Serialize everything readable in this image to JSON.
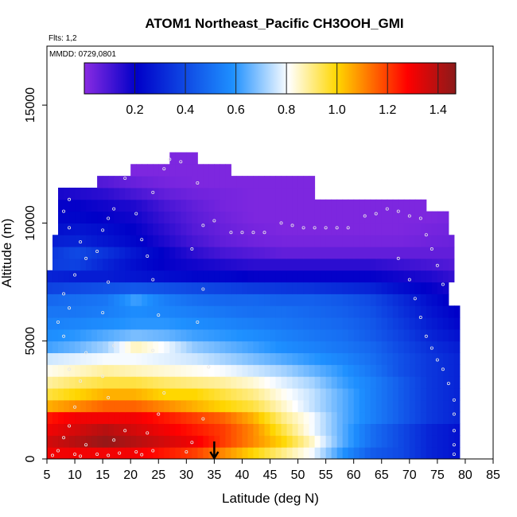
{
  "chart_data": {
    "type": "heatmap",
    "title": "ATOM1 Northeast_Pacific CH3OOH_GMI",
    "flights_label": "Flts: 1,2",
    "date_label": "MMDD: 0729,0801",
    "xlabel": "Latitude (deg N)",
    "ylabel": "Altitude (m)",
    "xlim": [
      5,
      85
    ],
    "ylim": [
      0,
      17500
    ],
    "x_ticks": [
      "5",
      "10",
      "15",
      "20",
      "25",
      "30",
      "35",
      "40",
      "45",
      "50",
      "55",
      "60",
      "65",
      "70",
      "75",
      "80",
      "85"
    ],
    "y_ticks": [
      "0",
      "5000",
      "10000",
      "15000"
    ],
    "colorbar": {
      "range": [
        0.0,
        1.47
      ],
      "ticks": [
        "0.2",
        "0.4",
        "0.6",
        "0.8",
        "1.0",
        "1.2",
        "1.4"
      ],
      "colors": [
        "#8a2be2",
        "#0000c8",
        "#1e90ff",
        "#ffffff",
        "#ffd700",
        "#ff0000",
        "#8b1a1a"
      ]
    },
    "marker_latitude": 35,
    "altitude_bands": [
      {
        "alt_bottom": 0,
        "alt_top": 500,
        "lat_min": 5,
        "lat_max": 79,
        "values": [
          1.3,
          1.3,
          1.3,
          1.3,
          1.25,
          1.2,
          1.1,
          1.0,
          0.9,
          0.8,
          0.6,
          0.45,
          0.4,
          0.3,
          0.25
        ]
      },
      {
        "alt_bottom": 500,
        "alt_top": 1000,
        "lat_min": 5,
        "lat_max": 79,
        "values": [
          1.35,
          1.4,
          1.45,
          1.4,
          1.35,
          1.3,
          1.2,
          1.1,
          1.0,
          0.85,
          0.65,
          0.5,
          0.4,
          0.3,
          0.25
        ]
      },
      {
        "alt_bottom": 1000,
        "alt_top": 1500,
        "lat_min": 5,
        "lat_max": 79,
        "values": [
          1.3,
          1.35,
          1.4,
          1.35,
          1.3,
          1.25,
          1.2,
          1.1,
          0.95,
          0.8,
          0.65,
          0.5,
          0.4,
          0.3,
          0.25
        ]
      },
      {
        "alt_bottom": 1500,
        "alt_top": 2000,
        "lat_min": 5,
        "lat_max": 79,
        "values": [
          1.25,
          1.3,
          1.3,
          1.3,
          1.25,
          1.2,
          1.15,
          1.05,
          0.9,
          0.8,
          0.65,
          0.55,
          0.45,
          0.35,
          0.3
        ]
      },
      {
        "alt_bottom": 2000,
        "alt_top": 2500,
        "lat_min": 5,
        "lat_max": 79,
        "values": [
          1.05,
          1.1,
          1.15,
          1.15,
          1.1,
          1.05,
          1.0,
          0.95,
          0.85,
          0.75,
          0.65,
          0.55,
          0.45,
          0.35,
          0.3
        ]
      },
      {
        "alt_bottom": 2500,
        "alt_top": 3000,
        "lat_min": 5,
        "lat_max": 79,
        "values": [
          0.95,
          1.0,
          1.05,
          1.05,
          1.0,
          1.0,
          0.95,
          0.9,
          0.82,
          0.75,
          0.65,
          0.55,
          0.45,
          0.35,
          0.3
        ]
      },
      {
        "alt_bottom": 3000,
        "alt_top": 3500,
        "lat_min": 5,
        "lat_max": 79,
        "values": [
          0.88,
          0.92,
          0.95,
          0.95,
          0.92,
          0.9,
          0.88,
          0.84,
          0.78,
          0.72,
          0.62,
          0.55,
          0.45,
          0.35,
          0.3
        ]
      },
      {
        "alt_bottom": 3500,
        "alt_top": 4000,
        "lat_min": 5,
        "lat_max": 79,
        "values": [
          0.82,
          0.85,
          0.88,
          0.86,
          0.84,
          0.82,
          0.8,
          0.76,
          0.72,
          0.66,
          0.6,
          0.52,
          0.42,
          0.35,
          0.3
        ]
      },
      {
        "alt_bottom": 4000,
        "alt_top": 4500,
        "lat_min": 5,
        "lat_max": 79,
        "values": [
          0.76,
          0.78,
          0.8,
          0.8,
          0.78,
          0.76,
          0.72,
          0.68,
          0.64,
          0.6,
          0.56,
          0.5,
          0.42,
          0.35,
          0.3
        ]
      },
      {
        "alt_bottom": 4500,
        "alt_top": 5000,
        "lat_min": 5,
        "lat_max": 79,
        "values": [
          0.62,
          0.66,
          0.72,
          0.86,
          0.8,
          0.7,
          0.66,
          0.62,
          0.58,
          0.55,
          0.52,
          0.48,
          0.4,
          0.33,
          0.28
        ]
      },
      {
        "alt_bottom": 5000,
        "alt_top": 5500,
        "lat_min": 5,
        "lat_max": 79,
        "values": [
          0.58,
          0.6,
          0.64,
          0.68,
          0.66,
          0.62,
          0.6,
          0.58,
          0.55,
          0.52,
          0.5,
          0.45,
          0.38,
          0.3,
          0.25
        ]
      },
      {
        "alt_bottom": 5500,
        "alt_top": 6000,
        "lat_min": 5,
        "lat_max": 79,
        "values": [
          0.55,
          0.56,
          0.58,
          0.6,
          0.6,
          0.58,
          0.56,
          0.54,
          0.52,
          0.5,
          0.48,
          0.44,
          0.36,
          0.28,
          0.22
        ]
      },
      {
        "alt_bottom": 6000,
        "alt_top": 6500,
        "lat_min": 5,
        "lat_max": 79,
        "values": [
          0.52,
          0.52,
          0.54,
          0.58,
          0.56,
          0.54,
          0.52,
          0.5,
          0.5,
          0.48,
          0.46,
          0.42,
          0.34,
          0.26,
          0.2
        ]
      },
      {
        "alt_bottom": 6500,
        "alt_top": 7000,
        "lat_min": 5,
        "lat_max": 77,
        "values": [
          0.48,
          0.5,
          0.52,
          0.62,
          0.54,
          0.5,
          0.48,
          0.48,
          0.46,
          0.46,
          0.44,
          0.4,
          0.32,
          0.24,
          0.18
        ]
      },
      {
        "alt_bottom": 7000,
        "alt_top": 7500,
        "lat_min": 5,
        "lat_max": 77,
        "values": [
          0.38,
          0.4,
          0.42,
          0.44,
          0.42,
          0.4,
          0.38,
          0.36,
          0.35,
          0.34,
          0.32,
          0.3,
          0.24,
          0.2,
          0.16
        ]
      },
      {
        "alt_bottom": 7500,
        "alt_top": 8000,
        "lat_min": 5,
        "lat_max": 78,
        "values": [
          0.3,
          0.28,
          0.28,
          0.26,
          0.24,
          0.22,
          0.22,
          0.2,
          0.2,
          0.2,
          0.2,
          0.2,
          0.18,
          0.16,
          0.12
        ]
      },
      {
        "alt_bottom": 8000,
        "alt_top": 8500,
        "lat_min": 6,
        "lat_max": 78,
        "values": [
          0.36,
          0.38,
          0.3,
          0.24,
          0.2,
          0.18,
          0.16,
          0.14,
          0.14,
          0.14,
          0.14,
          0.14,
          0.12,
          0.1,
          0.08
        ]
      },
      {
        "alt_bottom": 8500,
        "alt_top": 9000,
        "lat_min": 6,
        "lat_max": 78,
        "values": [
          0.34,
          0.4,
          0.34,
          0.26,
          0.2,
          0.14,
          0.1,
          0.08,
          0.06,
          0.06,
          0.06,
          0.06,
          0.06,
          0.06,
          0.06
        ]
      },
      {
        "alt_bottom": 9000,
        "alt_top": 9500,
        "lat_min": 6,
        "lat_max": 78,
        "values": [
          0.28,
          0.3,
          0.26,
          0.22,
          0.16,
          0.1,
          0.06,
          0.04,
          0.03,
          0.03,
          0.03,
          0.03,
          0.03,
          0.04,
          0.05
        ]
      },
      {
        "alt_bottom": 9500,
        "alt_top": 10000,
        "lat_min": 7,
        "lat_max": 77,
        "values": [
          0.24,
          0.26,
          0.24,
          0.2,
          0.14,
          0.08,
          0.05,
          0.03,
          0.02,
          0.02,
          0.02,
          0.02,
          0.02,
          0.03,
          0.04
        ]
      },
      {
        "alt_bottom": 10000,
        "alt_top": 10500,
        "lat_min": 7,
        "lat_max": 77,
        "values": [
          0.22,
          0.22,
          0.2,
          0.18,
          0.12,
          0.07,
          0.04,
          0.02,
          0.02,
          0.02,
          0.02,
          0.02,
          0.02,
          0.02,
          0.03
        ]
      },
      {
        "alt_bottom": 10500,
        "alt_top": 11000,
        "lat_min": 7,
        "lat_max": 73,
        "values": [
          0.2,
          0.2,
          0.18,
          0.16,
          0.1,
          0.06,
          0.03,
          0.02,
          0.02,
          0.02,
          0.02,
          0.02,
          0.02,
          0.02,
          0.02
        ]
      },
      {
        "alt_bottom": 11000,
        "alt_top": 11500,
        "lat_min": 7,
        "lat_max": 53,
        "values": [
          0.18,
          0.16,
          0.14,
          0.1,
          0.06,
          0.04,
          0.03,
          0.02,
          0.02,
          0.02,
          0.02,
          0.02,
          0.02,
          0.02,
          0.02
        ]
      },
      {
        "alt_bottom": 11500,
        "alt_top": 12000,
        "lat_min": 14,
        "lat_max": 53,
        "values": [
          0.12,
          0.1,
          0.08,
          0.05,
          0.03,
          0.02,
          0.02,
          0.02,
          0.02,
          0.02,
          0.02,
          0.02,
          0.02,
          0.02,
          0.02
        ]
      },
      {
        "alt_bottom": 12000,
        "alt_top": 12500,
        "lat_min": 20,
        "lat_max": 38,
        "values": [
          0.04,
          0.03,
          0.02,
          0.02,
          0.02,
          0.02,
          0.02,
          0.02,
          0.02,
          0.02,
          0.02,
          0.02,
          0.02,
          0.02,
          0.02
        ]
      },
      {
        "alt_bottom": 12500,
        "alt_top": 13000,
        "lat_min": 27,
        "lat_max": 32,
        "values": [
          0.02,
          0.02,
          0.02,
          0.02,
          0.02,
          0.02,
          0.02,
          0.02,
          0.02,
          0.02,
          0.02,
          0.02,
          0.02,
          0.02,
          0.02
        ]
      }
    ],
    "flight_points": [
      [
        6,
        150
      ],
      [
        7,
        350
      ],
      [
        8,
        900
      ],
      [
        9,
        1400
      ],
      [
        10,
        200
      ],
      [
        11,
        120
      ],
      [
        12,
        600
      ],
      [
        10,
        2200
      ],
      [
        11,
        3300
      ],
      [
        9,
        3800
      ],
      [
        12,
        4500
      ],
      [
        8,
        5200
      ],
      [
        7,
        5800
      ],
      [
        9,
        6400
      ],
      [
        8,
        7000
      ],
      [
        10,
        7800
      ],
      [
        12,
        8500
      ],
      [
        11,
        9200
      ],
      [
        9,
        9800
      ],
      [
        8,
        10500
      ],
      [
        9,
        11000
      ],
      [
        14,
        200
      ],
      [
        16,
        150
      ],
      [
        18,
        250
      ],
      [
        17,
        800
      ],
      [
        19,
        1200
      ],
      [
        16,
        2600
      ],
      [
        15,
        3500
      ],
      [
        17,
        4800
      ],
      [
        15,
        6200
      ],
      [
        16,
        7500
      ],
      [
        14,
        8800
      ],
      [
        15,
        9700
      ],
      [
        16,
        10200
      ],
      [
        17,
        10600
      ],
      [
        19,
        11900
      ],
      [
        21,
        300
      ],
      [
        22,
        180
      ],
      [
        24,
        350
      ],
      [
        23,
        1100
      ],
      [
        25,
        1900
      ],
      [
        26,
        2800
      ],
      [
        24,
        4600
      ],
      [
        25,
        6100
      ],
      [
        24,
        7600
      ],
      [
        23,
        8600
      ],
      [
        22,
        9300
      ],
      [
        21,
        10400
      ],
      [
        24,
        11300
      ],
      [
        26,
        12300
      ],
      [
        27,
        12700
      ],
      [
        29,
        12600
      ],
      [
        30,
        300
      ],
      [
        31,
        700
      ],
      [
        33,
        1700
      ],
      [
        34,
        3900
      ],
      [
        32,
        5800
      ],
      [
        33,
        7200
      ],
      [
        31,
        8900
      ],
      [
        33,
        9900
      ],
      [
        35,
        10100
      ],
      [
        32,
        11700
      ],
      [
        38,
        9600
      ],
      [
        40,
        9600
      ],
      [
        42,
        9600
      ],
      [
        44,
        9600
      ],
      [
        47,
        10000
      ],
      [
        49,
        9900
      ],
      [
        51,
        9800
      ],
      [
        53,
        9800
      ],
      [
        55,
        9800
      ],
      [
        57,
        9800
      ],
      [
        59,
        9800
      ],
      [
        62,
        10300
      ],
      [
        64,
        10400
      ],
      [
        66,
        10600
      ],
      [
        68,
        10500
      ],
      [
        70,
        10300
      ],
      [
        72,
        10200
      ],
      [
        73,
        9500
      ],
      [
        74,
        8900
      ],
      [
        75,
        8200
      ],
      [
        76,
        7400
      ],
      [
        68,
        8500
      ],
      [
        70,
        7600
      ],
      [
        71,
        6800
      ],
      [
        72,
        6000
      ],
      [
        73,
        5200
      ],
      [
        74,
        4700
      ],
      [
        75,
        4200
      ],
      [
        76,
        3800
      ],
      [
        77,
        3200
      ],
      [
        78,
        2500
      ],
      [
        78,
        1900
      ],
      [
        78,
        1200
      ],
      [
        78,
        600
      ],
      [
        78,
        200
      ]
    ]
  }
}
